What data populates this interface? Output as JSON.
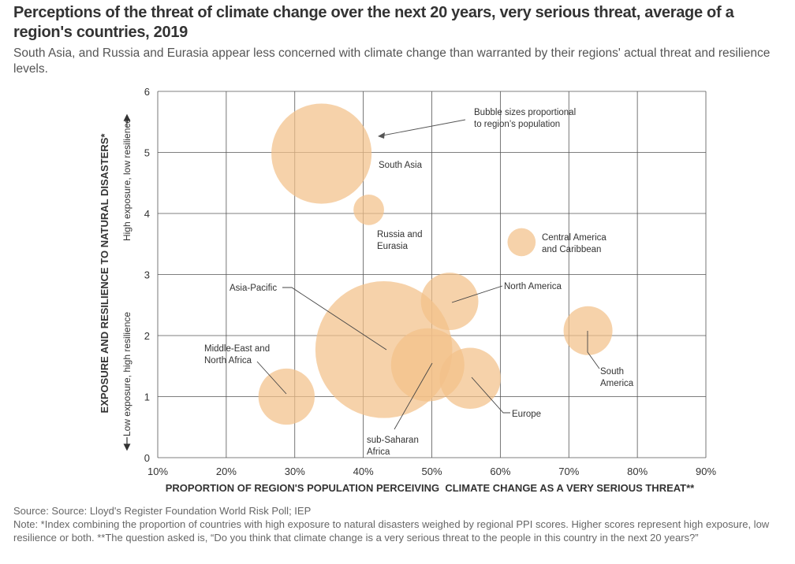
{
  "title": "Perceptions of the threat of climate change over the next 20 years, very serious threat, average of a region's countries, 2019",
  "subtitle": "South Asia, and Russia and Eurasia appear less concerned with climate change than warranted by their regions' actual threat and resilience levels.",
  "footer": {
    "source": "Source: Source: Lloyd's Register Foundation World Risk Poll; IEP",
    "note": "Note: *Index combining the proportion of countries with high exposure to natural disasters weighed by regional PPI scores. Higher scores represent high exposure, low resilience or both. **The question asked is, “Do you think that climate change is a very serious threat to the people in this country in the next 20 years?”"
  },
  "chart_data": {
    "type": "scatter",
    "bubble": true,
    "xlabel": "PROPORTION OF REGION'S POPULATION PERCEIVING  CLIMATE CHANGE AS A VERY SERIOUS THREAT**",
    "ylabel": "EXPOSURE AND RESILIENCE TO NATURAL DISASTERS*",
    "ylabel_low": "Low exposure, high resilience",
    "ylabel_high": "High exposure, low resilience",
    "xlim": [
      10,
      90
    ],
    "ylim": [
      0,
      6
    ],
    "xticks": [
      "10%",
      "20%",
      "30%",
      "40%",
      "50%",
      "60%",
      "70%",
      "80%",
      "90%"
    ],
    "yticks": [
      "0",
      "1",
      "2",
      "3",
      "4",
      "5",
      "6"
    ],
    "grid": true,
    "bubble_color": "#f2c189",
    "annotation": "Bubble sizes proportional to region’s population",
    "points": [
      {
        "name": "South Asia",
        "label_lines": [
          "South Asia"
        ],
        "x": 33.9,
        "y": 4.98,
        "radius_y": 0.82
      },
      {
        "name": "Russia and Eurasia",
        "label_lines": [
          "Russia and",
          "Eurasia"
        ],
        "x": 40.8,
        "y": 4.06,
        "radius_y": 0.25
      },
      {
        "name": "Central America and Caribbean",
        "label_lines": [
          "Central America",
          "and Caribbean"
        ],
        "x": 63.1,
        "y": 3.53,
        "radius_y": 0.23
      },
      {
        "name": "North America",
        "label_lines": [
          "North America"
        ],
        "x": 52.6,
        "y": 2.56,
        "radius_y": 0.47
      },
      {
        "name": "South America",
        "label_lines": [
          "South",
          "America"
        ],
        "x": 72.8,
        "y": 2.08,
        "radius_y": 0.4
      },
      {
        "name": "Asia-Pacific",
        "label_lines": [
          "Asia-Pacific"
        ],
        "x": 43.0,
        "y": 1.77,
        "radius_y": 1.12
      },
      {
        "name": "sub-Saharan Africa",
        "label_lines": [
          "sub-Saharan",
          "Africa"
        ],
        "x": 49.4,
        "y": 1.52,
        "radius_y": 0.6
      },
      {
        "name": "Europe",
        "label_lines": [
          "Europe"
        ],
        "x": 55.6,
        "y": 1.3,
        "radius_y": 0.5
      },
      {
        "name": "Middle-East and North Africa",
        "label_lines": [
          "Middle-East and",
          "North Africa"
        ],
        "x": 28.8,
        "y": 1.0,
        "radius_y": 0.46
      }
    ]
  }
}
